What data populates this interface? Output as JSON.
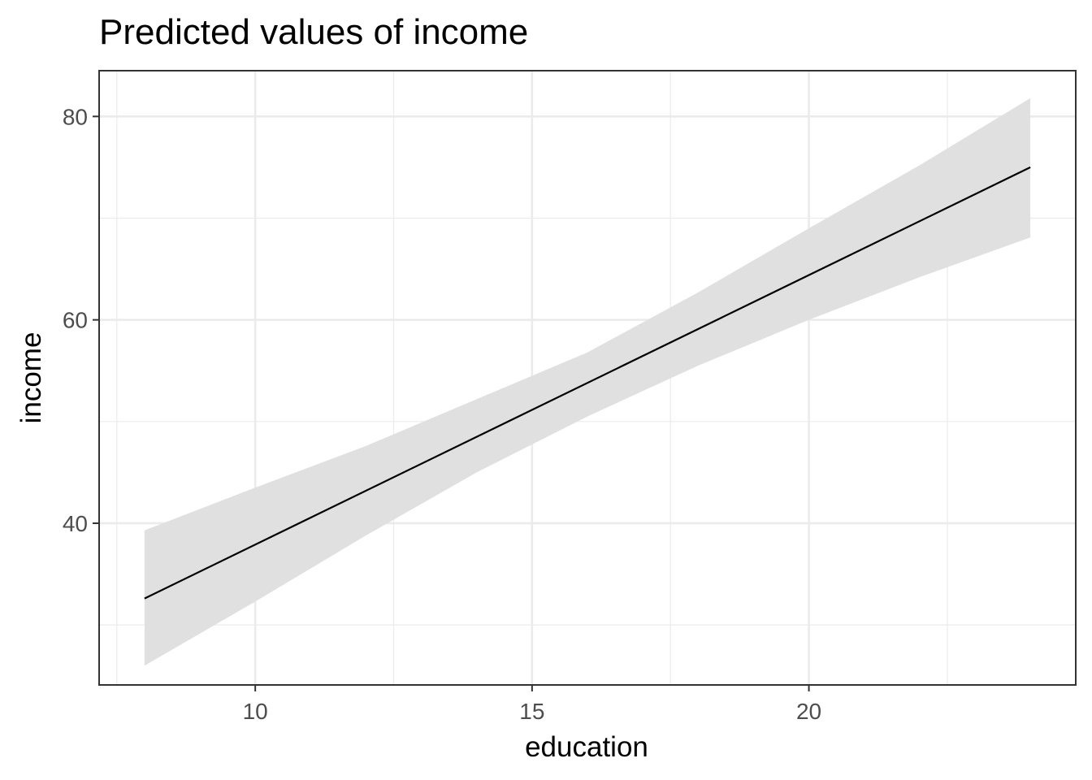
{
  "chart_data": {
    "type": "line",
    "title": "Predicted values of income",
    "xlabel": "education",
    "ylabel": "income",
    "xlim": [
      7.18,
      24.82
    ],
    "ylim": [
      24.1,
      84.5
    ],
    "x_ticks": [
      10,
      15,
      20
    ],
    "x_tick_labels": [
      "10",
      "15",
      "20"
    ],
    "x_minor_ticks": [
      7.5,
      12.5,
      17.5,
      22.5
    ],
    "y_ticks": [
      40,
      60,
      80
    ],
    "y_tick_labels": [
      "40",
      "60",
      "80"
    ],
    "y_minor_ticks": [
      30,
      50,
      70
    ],
    "grid": true,
    "series": [
      {
        "x": [
          8,
          24
        ],
        "y": [
          32.6,
          75.0
        ],
        "ci_x": [
          8,
          10,
          12,
          14,
          16,
          18,
          20,
          22,
          24
        ],
        "ci_upper": [
          39.3,
          43.5,
          47.6,
          52.2,
          56.8,
          62.7,
          69.0,
          75.2,
          81.8
        ],
        "ci_lower": [
          26.0,
          32.3,
          38.8,
          45.0,
          50.5,
          55.5,
          60.0,
          64.2,
          68.1
        ]
      }
    ],
    "colors": {
      "line": "#000000",
      "ribbon": "#e0e0e0",
      "grid": "#ebebeb",
      "panel_border": "#333333",
      "tick_label": "#4d4d4d"
    }
  }
}
